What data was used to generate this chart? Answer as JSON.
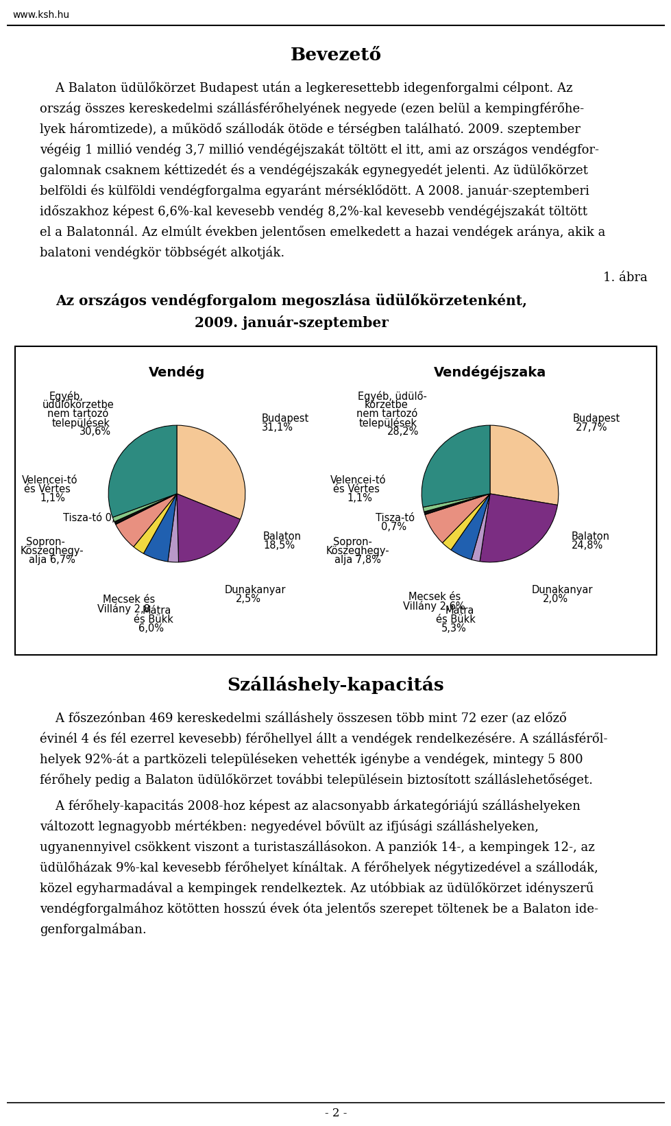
{
  "page_header": "www.ksh.hu",
  "section1_title": "Bevezető",
  "lines_p1": [
    "    A Balaton üdülőkörzet Budapest után a legkeresettebb idegenforgalmi célpont. Az",
    "ország összes kereskedelmi szállásférőhelyének negyede (ezen belül a kempingférőhe-",
    "lyek háromtizede), a működő szállodák ötöde e térségben található. 2009. szeptember",
    "végéig 1 millió vendég 3,7 millió vendégéjszakát töltött el itt, ami az országos vendégfor-",
    "galomnak csaknem kéttizedét és a vendégéjszakák egynegyedét jelenti. Az üdülőkörzet",
    "belföldi és külföldi vendégforgalma egyaránt mérséklődött. A 2008. január-szeptemberi",
    "időszakhoz képest 6,6%-kal kevesebb vendég 8,2%-kal kevesebb vendégéjszakát töltött",
    "el a Balatonnál. Az elmúlt években jelentősen emelkedett a hazai vendégek aránya, akik a",
    "balatoni vendégkör többségét alkotják."
  ],
  "figure_number": "1. ábra",
  "figure_title_line1": "Az országos vendégforgalom megoszlása üdülőkörzetenként,",
  "figure_title_line2": "2009. január-szeptember",
  "pie1_title": "Vendég",
  "pie2_title": "Vendégéjszaka",
  "pie1_values": [
    31.1,
    18.5,
    2.5,
    6.0,
    2.8,
    6.7,
    0.7,
    1.1,
    30.6
  ],
  "pie2_values": [
    27.7,
    24.8,
    2.0,
    5.3,
    2.6,
    7.8,
    0.7,
    1.1,
    28.2
  ],
  "pie_colors": [
    "#F5C896",
    "#7B2D82",
    "#B898C8",
    "#2060B0",
    "#F0D840",
    "#E89080",
    "#101010",
    "#88C888",
    "#2D8B80"
  ],
  "startangle": 90,
  "section2_title": "Szálláshely-kapacitás",
  "lines_p2a": [
    "    A főszezónban 469 kereskedelmi szálláshely összesen több mint 72 ezer (az előző",
    "évinél 4 és fél ezerrel kevesebb) férőhellyel állt a vendégek rendelkezésére. A szállásféről-",
    "helyek 92%-át a partközeli településeken vehették igénybe a vendégek, mintegy 5 800",
    "férőhely pedig a Balaton üdülőkörzet további településein biztosított szálláslehetőséget."
  ],
  "lines_p2b": [
    "    A férőhely-kapacitás 2008-hoz képest az alacsonyabb árkategóriájú szálláshelyeken",
    "változott legnagyobb mértékben: negyedével bővült az ifjúsági szálláshelyeken,",
    "ugyanennyivel csökkent viszont a turistaszállásokon. A panziók 14-, a kempingek 12-, az",
    "üdülőházak 9%-kal kevesebb férőhelyet kínáltak. A férőhelyek négytizedével a szállodák,",
    "közel egyharmadával a kempingek rendelkeztek. Az utóbbiak az üdülőkörzet idényszerű",
    "vendégforgalmához kötötten hosszú évek óta jelentős szerepet töltenek be a Balaton ide-",
    "genforgalmában."
  ],
  "page_number": "- 2 -",
  "background_color": "#FFFFFF",
  "text_color": "#000000"
}
